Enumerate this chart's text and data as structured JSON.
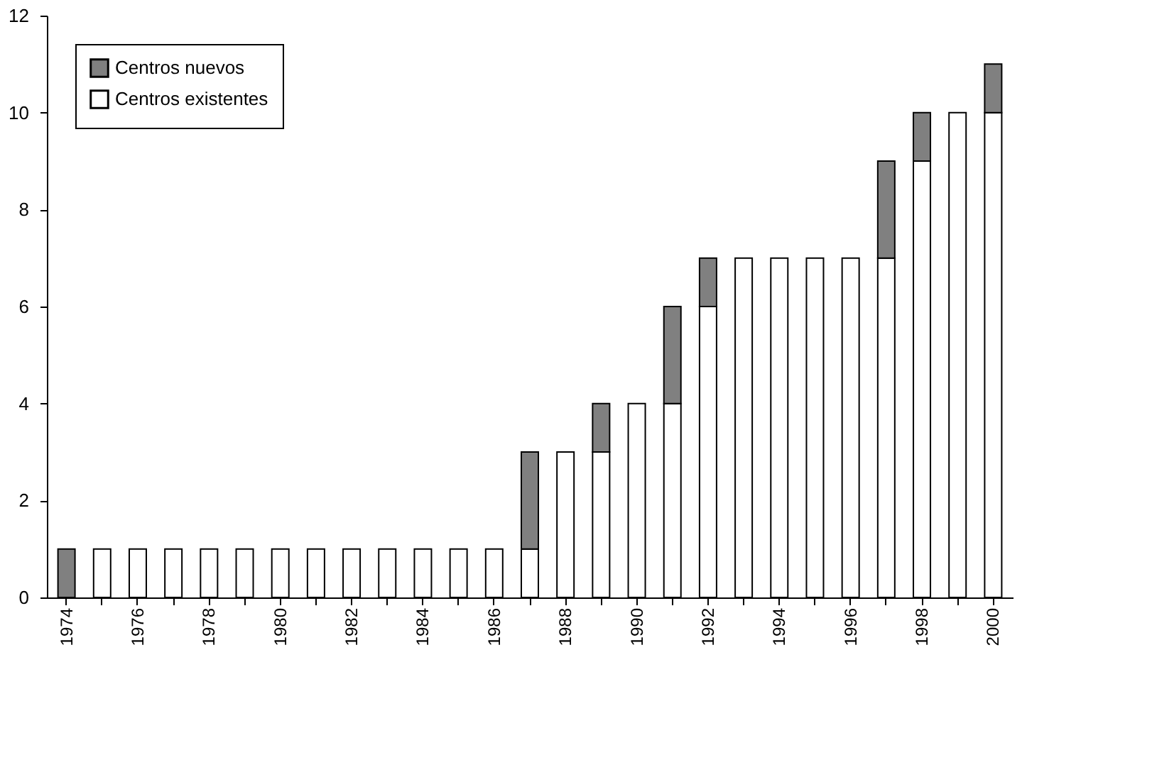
{
  "chart_data": {
    "type": "bar",
    "stacked": true,
    "categories": [
      "1974",
      null,
      "1976",
      null,
      "1978",
      null,
      "1980",
      null,
      "1982",
      null,
      "1984",
      null,
      "1986",
      null,
      "1988",
      null,
      "1990",
      null,
      "1992",
      null,
      "1994",
      null,
      "1996",
      null,
      "1998",
      null,
      "2000"
    ],
    "series": [
      {
        "name": "Centros existentes",
        "color": "#ffffff",
        "values": [
          0,
          1,
          1,
          1,
          1,
          1,
          1,
          1,
          1,
          1,
          1,
          1,
          1,
          1,
          3,
          3,
          4,
          4,
          6,
          7,
          7,
          7,
          7,
          7,
          9,
          10,
          10
        ]
      },
      {
        "name": "Centros nuevos",
        "color": "#808080",
        "values": [
          1,
          0,
          0,
          0,
          0,
          0,
          0,
          0,
          0,
          0,
          0,
          0,
          0,
          2,
          0,
          1,
          0,
          2,
          1,
          0,
          0,
          0,
          0,
          2,
          1,
          0,
          1
        ]
      }
    ],
    "ylim": [
      0,
      12
    ],
    "yticks": [
      0,
      2,
      4,
      6,
      8,
      10,
      12
    ],
    "grid": false,
    "legend": "top left"
  }
}
